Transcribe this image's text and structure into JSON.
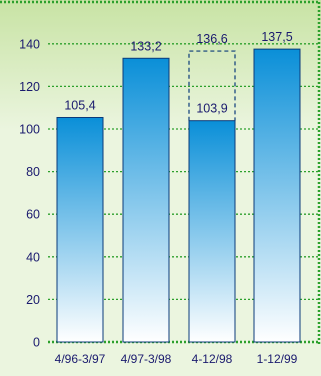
{
  "chart_data": {
    "type": "bar",
    "categories": [
      "4/96-3/97",
      "4/97-3/98",
      "4-12/98",
      "1-12/99"
    ],
    "values": [
      105.4,
      133.2,
      103.9,
      137.5
    ],
    "value_labels": [
      "105,4",
      "133,2",
      "103,9",
      "137,5"
    ],
    "projected": {
      "category": "4-12/98",
      "value": 136.6,
      "label": "136,6",
      "style": "dashed-outline"
    },
    "y_ticks": [
      "0",
      "20",
      "40",
      "60",
      "80",
      "100",
      "120",
      "140"
    ],
    "ylim": [
      0,
      150
    ],
    "grid": true,
    "title": "",
    "xlabel": "",
    "ylabel": "",
    "colors": {
      "bar_top": "#0a8fd8",
      "bar_bottom": "#ffffff",
      "grid": "#2ca02c",
      "text": "#1a1a6e",
      "background": "#ebf5df",
      "background_top": "#c8e3a4"
    }
  }
}
